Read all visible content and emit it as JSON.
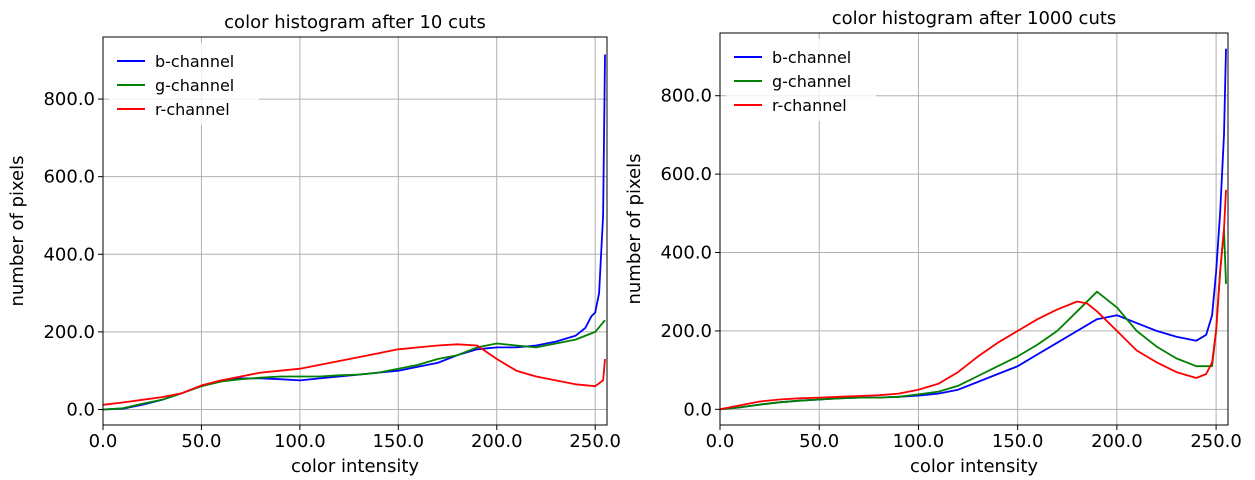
{
  "chart_data": [
    {
      "type": "line",
      "title": "color histogram after 10 cuts",
      "xlabel": "color intensity",
      "ylabel": "number of pixels",
      "xlim": [
        0,
        256
      ],
      "ylim": [
        -40,
        960
      ],
      "xticks": [
        0,
        50,
        100,
        150,
        200,
        250
      ],
      "xtick_labels": [
        "0.0",
        "50.0",
        "100.0",
        "150.0",
        "200.0",
        "250.0"
      ],
      "yticks": [
        0,
        200,
        400,
        600,
        800
      ],
      "ytick_labels": [
        "0.0",
        "200.0",
        "400.0",
        "600.0",
        "800.0"
      ],
      "grid": true,
      "legend_position": "top-left",
      "series": [
        {
          "name": "b-channel",
          "color": "#0000ff",
          "x": [
            0,
            10,
            20,
            30,
            40,
            50,
            60,
            70,
            80,
            90,
            100,
            110,
            120,
            130,
            140,
            150,
            160,
            170,
            180,
            190,
            200,
            210,
            220,
            230,
            240,
            245,
            248,
            250,
            252,
            254,
            255
          ],
          "y": [
            0,
            2,
            12,
            25,
            42,
            60,
            75,
            80,
            80,
            78,
            75,
            80,
            85,
            90,
            95,
            100,
            110,
            120,
            140,
            155,
            160,
            160,
            165,
            175,
            190,
            210,
            240,
            250,
            300,
            500,
            915
          ]
        },
        {
          "name": "g-channel",
          "color": "#008000",
          "x": [
            0,
            10,
            20,
            30,
            40,
            50,
            60,
            70,
            80,
            90,
            100,
            110,
            120,
            130,
            140,
            150,
            160,
            170,
            180,
            190,
            200,
            210,
            220,
            230,
            240,
            250,
            255
          ],
          "y": [
            0,
            3,
            15,
            25,
            42,
            60,
            72,
            78,
            82,
            85,
            85,
            85,
            88,
            90,
            95,
            105,
            115,
            130,
            140,
            160,
            170,
            165,
            160,
            170,
            180,
            200,
            230
          ]
        },
        {
          "name": "r-channel",
          "color": "#ff0000",
          "x": [
            0,
            10,
            20,
            30,
            40,
            50,
            60,
            70,
            80,
            90,
            100,
            110,
            120,
            130,
            140,
            150,
            160,
            170,
            180,
            190,
            200,
            210,
            220,
            230,
            240,
            250,
            254,
            255
          ],
          "y": [
            12,
            18,
            25,
            32,
            42,
            62,
            75,
            85,
            95,
            100,
            105,
            115,
            125,
            135,
            145,
            155,
            160,
            165,
            168,
            165,
            130,
            100,
            85,
            75,
            65,
            60,
            75,
            130
          ]
        }
      ]
    },
    {
      "type": "line",
      "title": "color histogram after 1000 cuts",
      "xlabel": "color intensity",
      "ylabel": "number of pixels",
      "xlim": [
        0,
        256
      ],
      "ylim": [
        -40,
        960
      ],
      "xticks": [
        0,
        50,
        100,
        150,
        200,
        250
      ],
      "xtick_labels": [
        "0.0",
        "50.0",
        "100.0",
        "150.0",
        "200.0",
        "250.0"
      ],
      "yticks": [
        0,
        200,
        400,
        600,
        800
      ],
      "ytick_labels": [
        "0.0",
        "200.0",
        "400.0",
        "600.0",
        "800.0"
      ],
      "grid": true,
      "legend_position": "top-left",
      "series": [
        {
          "name": "b-channel",
          "color": "#0000ff",
          "x": [
            0,
            10,
            20,
            30,
            40,
            50,
            60,
            70,
            80,
            90,
            100,
            110,
            120,
            130,
            140,
            150,
            160,
            170,
            180,
            190,
            200,
            210,
            220,
            230,
            240,
            245,
            248,
            250,
            252,
            254,
            255
          ],
          "y": [
            0,
            5,
            12,
            18,
            22,
            25,
            28,
            30,
            30,
            32,
            35,
            40,
            50,
            70,
            90,
            110,
            140,
            170,
            200,
            230,
            240,
            220,
            200,
            185,
            175,
            190,
            240,
            350,
            500,
            700,
            920
          ]
        },
        {
          "name": "g-channel",
          "color": "#008000",
          "x": [
            0,
            10,
            20,
            30,
            40,
            50,
            60,
            70,
            80,
            90,
            100,
            110,
            120,
            130,
            140,
            150,
            160,
            170,
            180,
            190,
            200,
            210,
            220,
            230,
            240,
            248,
            250,
            252,
            254,
            255
          ],
          "y": [
            0,
            5,
            12,
            18,
            22,
            25,
            28,
            30,
            30,
            32,
            38,
            45,
            60,
            85,
            110,
            135,
            165,
            200,
            250,
            300,
            260,
            200,
            160,
            130,
            110,
            110,
            200,
            350,
            460,
            320
          ]
        },
        {
          "name": "r-channel",
          "color": "#ff0000",
          "x": [
            0,
            10,
            20,
            30,
            40,
            50,
            60,
            70,
            80,
            90,
            100,
            110,
            120,
            130,
            140,
            150,
            160,
            170,
            180,
            185,
            190,
            200,
            210,
            220,
            230,
            240,
            245,
            248,
            250,
            252,
            254,
            255
          ],
          "y": [
            0,
            10,
            20,
            25,
            28,
            30,
            32,
            34,
            36,
            40,
            50,
            65,
            95,
            135,
            170,
            200,
            230,
            255,
            275,
            270,
            250,
            200,
            150,
            120,
            95,
            80,
            90,
            120,
            200,
            350,
            460,
            560
          ]
        }
      ]
    }
  ]
}
